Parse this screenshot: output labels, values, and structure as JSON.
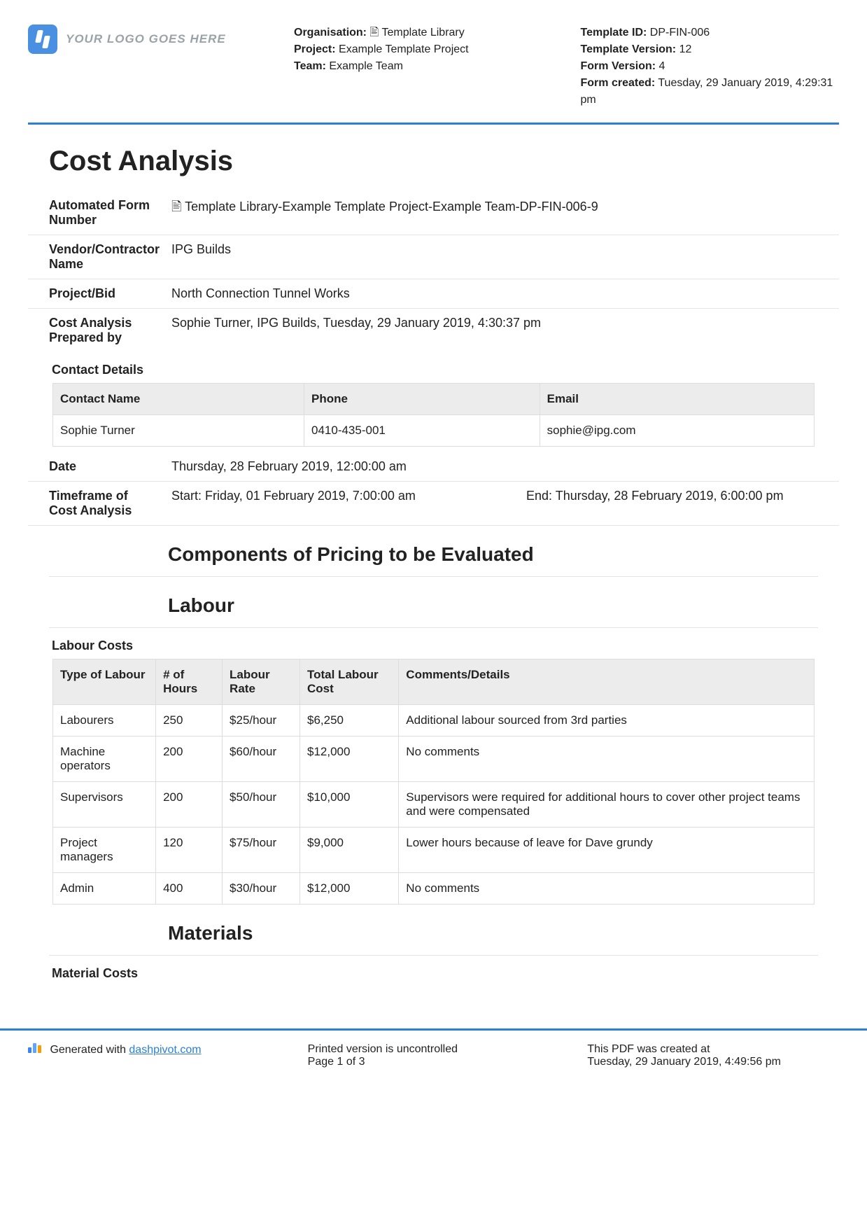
{
  "logo_placeholder": "YOUR LOGO GOES HERE",
  "header_meta1": {
    "org_label": "Organisation:",
    "org_value": "🖹 Template Library",
    "project_label": "Project:",
    "project_value": "Example Template Project",
    "team_label": "Team:",
    "team_value": "Example Team"
  },
  "header_meta2": {
    "tid_label": "Template ID:",
    "tid_value": "DP-FIN-006",
    "tver_label": "Template Version:",
    "tver_value": "12",
    "fver_label": "Form Version:",
    "fver_value": "4",
    "fcreated_label": "Form created:",
    "fcreated_value": "Tuesday, 29 January 2019, 4:29:31 pm"
  },
  "title": "Cost Analysis",
  "fields": {
    "afn_label": "Automated Form Number",
    "afn_value": "🖹 Template Library-Example Template Project-Example Team-DP-FIN-006-9",
    "vendor_label": "Vendor/Contractor Name",
    "vendor_value": "IPG Builds",
    "project_label": "Project/Bid",
    "project_value": "North Connection Tunnel Works",
    "prepby_label": "Cost Analysis Prepared by",
    "prepby_value": "Sophie Turner, IPG Builds, Tuesday, 29 January 2019, 4:30:37 pm",
    "date_label": "Date",
    "date_value": "Thursday, 28 February 2019, 12:00:00 am",
    "timeframe_label": "Timeframe of Cost Analysis",
    "timeframe_start": "Start: Friday, 01 February 2019, 7:00:00 am",
    "timeframe_end": "End: Thursday, 28 February 2019, 6:00:00 pm"
  },
  "contact": {
    "heading": "Contact Details",
    "cols": [
      "Contact Name",
      "Phone",
      "Email"
    ],
    "rows": [
      [
        "Sophie Turner",
        "0410-435-001",
        "sophie@ipg.com"
      ]
    ]
  },
  "components_heading": "Components of Pricing to be Evaluated",
  "labour_heading": "Labour",
  "labour_costs": {
    "heading": "Labour Costs",
    "cols": [
      "Type of Labour",
      "# of Hours",
      "Labour Rate",
      "Total Labour Cost",
      "Comments/Details"
    ],
    "rows": [
      [
        "Labourers",
        "250",
        "$25/hour",
        "$6,250",
        "Additional labour sourced from 3rd parties"
      ],
      [
        "Machine operators",
        "200",
        "$60/hour",
        "$12,000",
        "No comments"
      ],
      [
        "Supervisors",
        "200",
        "$50/hour",
        "$10,000",
        "Supervisors were required for additional hours to cover other project teams and were compensated"
      ],
      [
        "Project managers",
        "120",
        "$75/hour",
        "$9,000",
        "Lower hours because of leave for Dave grundy"
      ],
      [
        "Admin",
        "400",
        "$30/hour",
        "$12,000",
        "No comments"
      ]
    ]
  },
  "materials_heading": "Materials",
  "material_costs_heading": "Material Costs",
  "footer": {
    "generated_prefix": "Generated with ",
    "link_text": "dashpivot.com",
    "uncontrolled": "Printed version is uncontrolled",
    "page": "Page 1 of 3",
    "created_prefix": "This PDF was created at",
    "created_at": "Tuesday, 29 January 2019, 4:49:56 pm"
  },
  "style": {
    "accent_border": "#2b7fd6",
    "header_bg": "#ececec",
    "row_border": "#ddd",
    "body_font_size": 17
  }
}
